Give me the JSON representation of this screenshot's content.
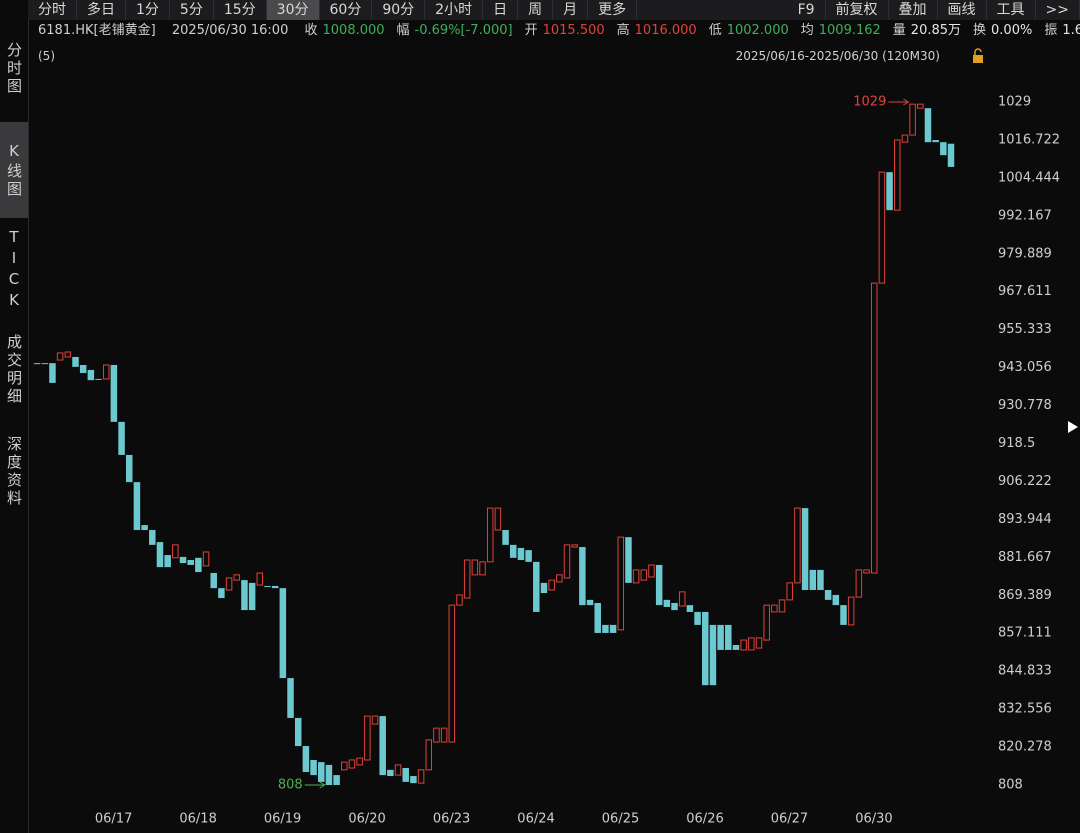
{
  "toolbar": {
    "periods": [
      "分时",
      "多日",
      "1分",
      "5分",
      "15分",
      "30分",
      "60分",
      "90分",
      "2小时",
      "日",
      "周",
      "月",
      "更多"
    ],
    "selected_period": "30分",
    "tools": [
      "F9",
      "前复权",
      "叠加",
      "画线",
      "工具",
      ">>"
    ]
  },
  "sidebar": {
    "tabs": [
      "分时图",
      "K线图",
      "TICK",
      "成交明细",
      "深度资料"
    ],
    "selected_tab": "K线图"
  },
  "quote": {
    "symbol": "6181.HK[老铺黄金]",
    "time": "2025/06/30 16:00",
    "fields": [
      {
        "label": "收",
        "value": "1008.000",
        "color": "#3fae5b"
      },
      {
        "label": "幅",
        "value": "-0.69%[-7.000]",
        "color": "#3fae5b"
      },
      {
        "label": "开",
        "value": "1015.500",
        "color": "#e0423a"
      },
      {
        "label": "高",
        "value": "1016.000",
        "color": "#e0423a"
      },
      {
        "label": "低",
        "value": "1002.000",
        "color": "#3fae5b"
      },
      {
        "label": "均",
        "value": "1009.162",
        "color": "#3fae5b"
      },
      {
        "label": "量",
        "value": "20.85万",
        "color": "#e6e6e6"
      },
      {
        "label": "换",
        "value": "0.00%",
        "color": "#e6e6e6"
      },
      {
        "label": "振",
        "value": "1.6",
        "color": "#e6e6e6"
      }
    ]
  },
  "chart_data": {
    "type": "candlestick",
    "indicator": "(5)",
    "range_label": "2025/06/16-2025/06/30 (120M30)",
    "categories": [
      null,
      null,
      null,
      null,
      null,
      null,
      null,
      null,
      null,
      null,
      "06/17",
      null,
      null,
      null,
      null,
      null,
      null,
      null,
      null,
      null,
      null,
      "06/18",
      null,
      null,
      null,
      null,
      null,
      null,
      null,
      null,
      null,
      null,
      "06/19",
      null,
      null,
      null,
      null,
      null,
      null,
      null,
      null,
      null,
      null,
      "06/20",
      null,
      null,
      null,
      null,
      null,
      null,
      null,
      null,
      null,
      null,
      "06/23",
      null,
      null,
      null,
      null,
      null,
      null,
      null,
      null,
      null,
      null,
      "06/24",
      null,
      null,
      null,
      null,
      null,
      null,
      null,
      null,
      null,
      null,
      "06/25",
      null,
      null,
      null,
      null,
      null,
      null,
      null,
      null,
      null,
      null,
      "06/26",
      null,
      null,
      null,
      null,
      null,
      null,
      null,
      null,
      null,
      null,
      "06/27",
      null,
      null,
      null,
      null,
      null,
      null,
      null,
      null,
      null,
      null,
      "06/30",
      null,
      null,
      null,
      null,
      null,
      null,
      null,
      null,
      null,
      null
    ],
    "open": [
      944.5,
      944.5,
      944.5,
      945.5,
      946.5,
      946.5,
      943.9,
      942.3,
      939.4,
      939.4,
      943.9,
      925.5,
      914.8,
      906.0,
      892.1,
      890.5,
      886.6,
      882.4,
      881.5,
      881.8,
      880.8,
      881.5,
      878.9,
      876.6,
      871.7,
      871.1,
      874.3,
      874.3,
      873.4,
      872.7,
      872.4,
      872.4,
      871.7,
      842.6,
      829.7,
      820.6,
      816.1,
      815.4,
      814.5,
      811.2,
      812.9,
      813.5,
      814.5,
      816.1,
      827.7,
      830.3,
      812.9,
      811.2,
      813.5,
      810.9,
      808.6,
      812.9,
      821.9,
      821.9,
      821.9,
      866.2,
      868.5,
      876.0,
      876.0,
      880.2,
      890.5,
      890.5,
      885.7,
      884.7,
      884.0,
      880.2,
      873.4,
      871.1,
      873.7,
      875.0,
      885.0,
      885.0,
      867.9,
      866.9,
      859.8,
      859.8,
      858.2,
      888.2,
      873.4,
      874.3,
      875.3,
      879.2,
      867.9,
      866.9,
      865.9,
      866.2,
      864.0,
      864.0,
      859.8,
      859.8,
      859.8,
      853.3,
      851.7,
      851.7,
      852.3,
      854.9,
      864.0,
      864.0,
      867.9,
      873.4,
      897.6,
      877.6,
      877.6,
      871.1,
      869.5,
      866.2,
      859.8,
      868.8,
      876.6,
      876.6,
      970.4,
      1006.3,
      994.0,
      1016.0,
      1018.3,
      1027.0,
      1027.0,
      1016.7,
      1016.0,
      1015.5
    ],
    "close": [
      944.5,
      944.5,
      938.1,
      947.8,
      948.1,
      943.3,
      941.3,
      939.0,
      939.4,
      943.9,
      925.5,
      914.8,
      906.0,
      890.5,
      890.5,
      885.7,
      878.5,
      878.5,
      885.7,
      879.8,
      879.2,
      876.9,
      883.4,
      871.7,
      868.5,
      875.0,
      876.0,
      864.6,
      864.6,
      876.6,
      872.4,
      871.7,
      842.6,
      829.7,
      820.6,
      812.2,
      811.2,
      809.0,
      808.0,
      808.0,
      815.4,
      816.1,
      816.7,
      830.3,
      830.3,
      811.2,
      810.9,
      814.5,
      809.0,
      808.6,
      812.9,
      822.6,
      826.4,
      826.4,
      866.2,
      869.5,
      880.8,
      880.8,
      880.2,
      897.6,
      897.6,
      885.7,
      881.5,
      880.8,
      880.2,
      864.0,
      870.1,
      874.3,
      876.0,
      885.7,
      885.7,
      866.2,
      866.2,
      857.2,
      857.2,
      857.2,
      888.2,
      873.4,
      877.6,
      877.6,
      879.2,
      866.2,
      865.6,
      864.6,
      870.5,
      864.0,
      859.8,
      840.3,
      840.3,
      851.7,
      851.7,
      851.7,
      854.9,
      855.6,
      855.6,
      866.2,
      866.2,
      867.9,
      873.4,
      897.6,
      871.1,
      871.1,
      871.1,
      867.9,
      866.2,
      859.8,
      868.8,
      877.6,
      877.6,
      970.4,
      1006.3,
      994.0,
      1016.7,
      1018.3,
      1028.3,
      1028.3,
      1016.0,
      1016.0,
      1011.8,
      1008.0
    ],
    "up_color": "#e0423a",
    "down_color": "#6cc9cf",
    "high_mark": 1029,
    "high_color": "#e0423a",
    "low_mark": 808,
    "low_color": "#4caf50",
    "ylim": [
      808,
      1029
    ],
    "yticks": [
      1029,
      1016.722,
      1004.444,
      992.167,
      979.889,
      967.611,
      955.333,
      943.056,
      930.778,
      918.5,
      906.222,
      893.944,
      881.667,
      869.389,
      857.111,
      844.833,
      832.556,
      820.278,
      808
    ],
    "grid": false
  }
}
